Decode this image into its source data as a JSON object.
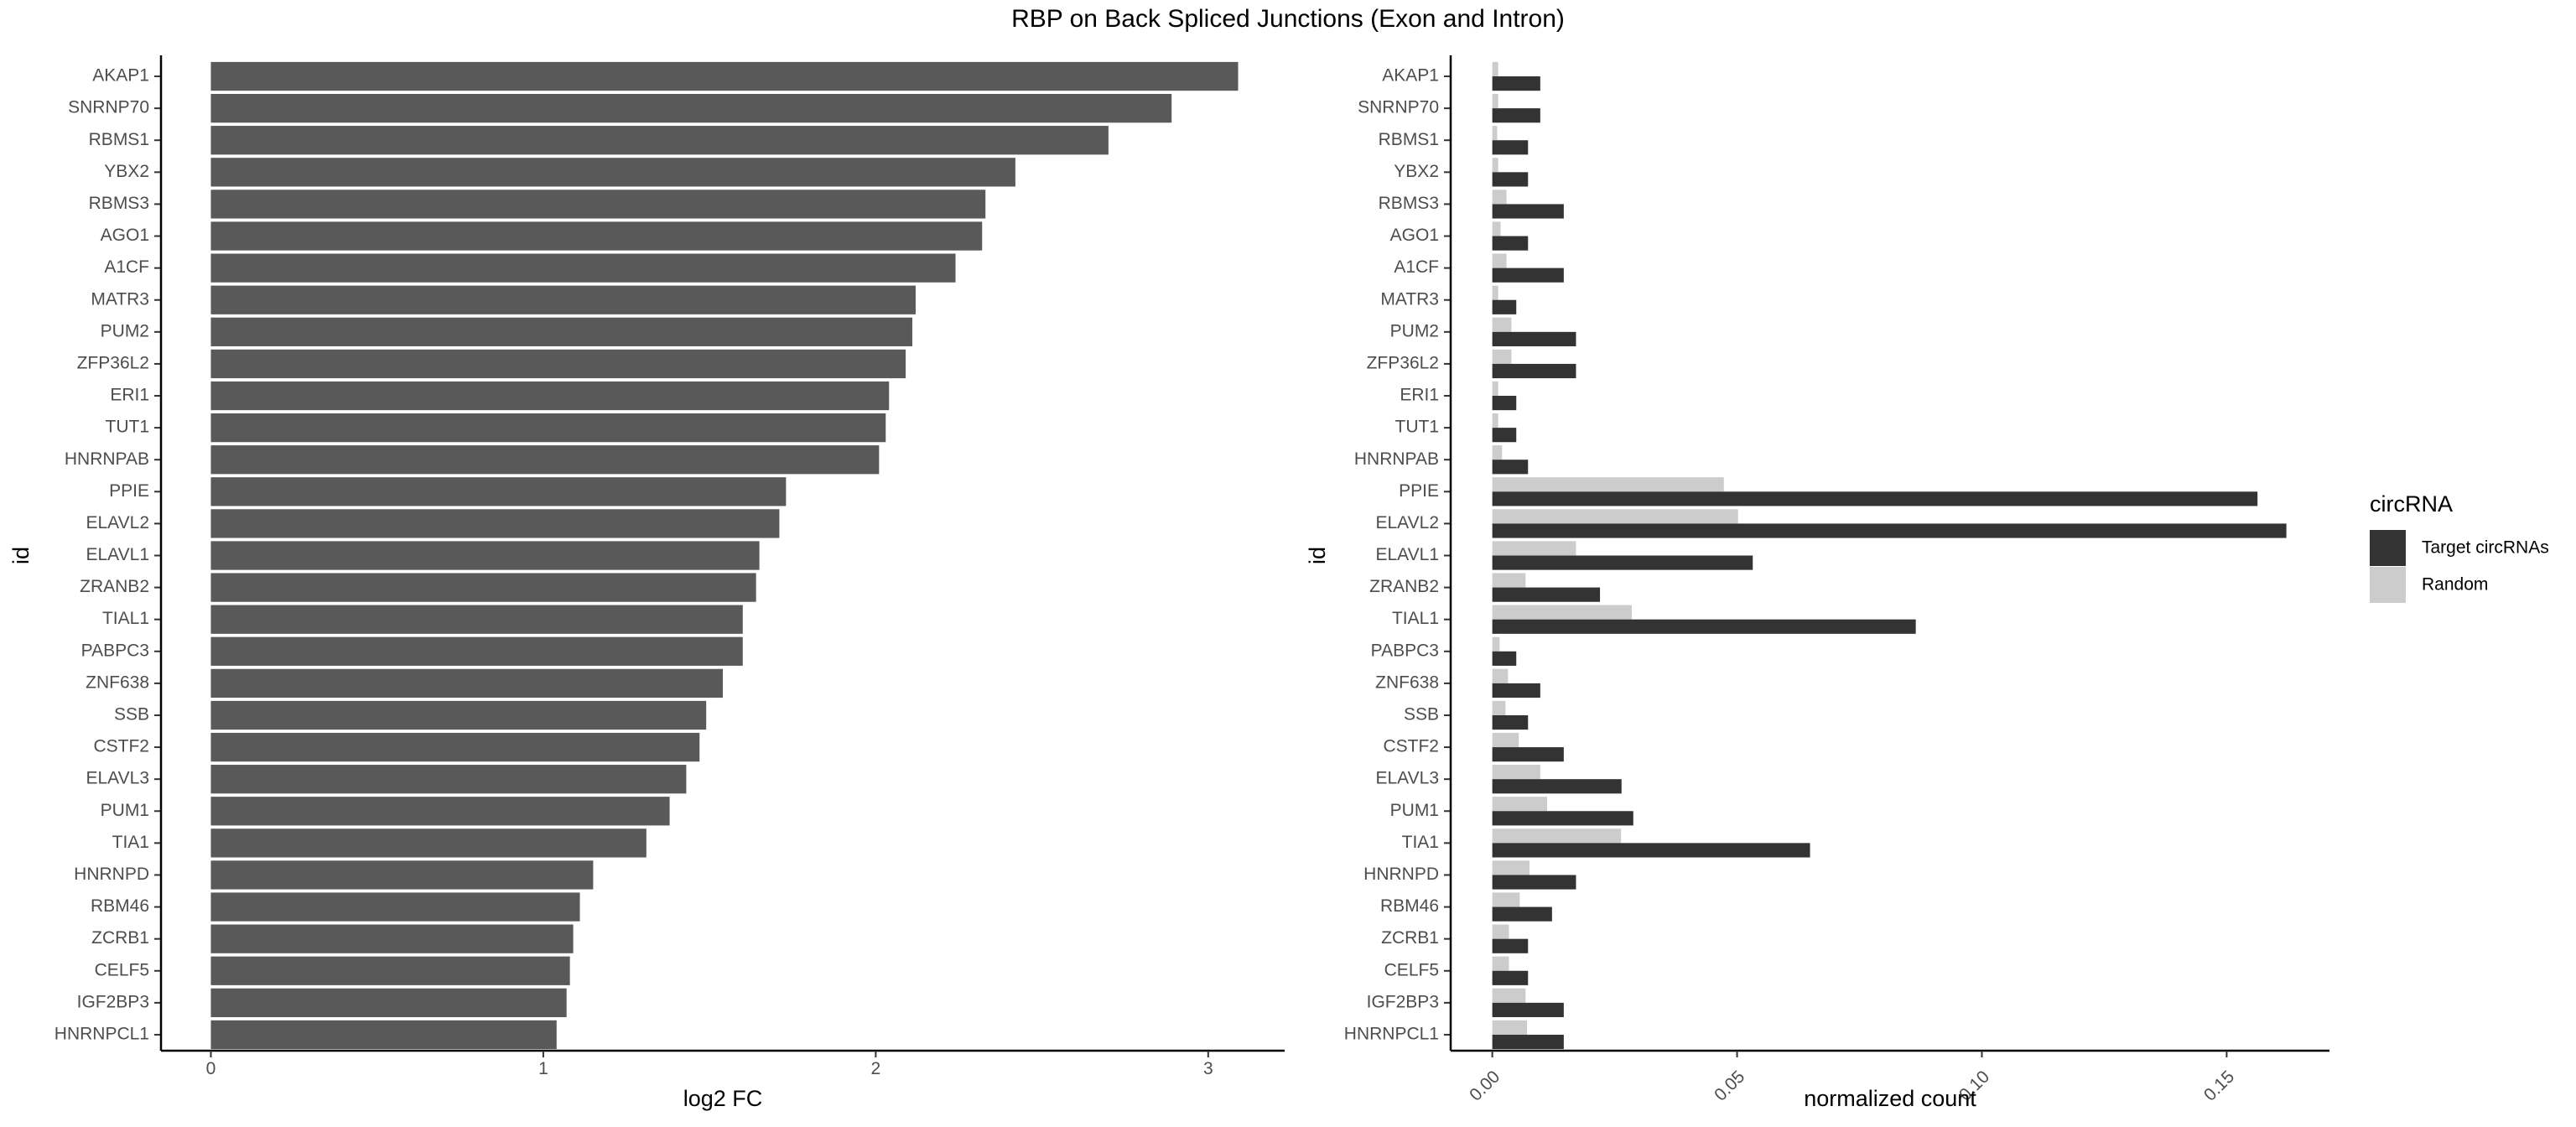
{
  "figure_title": "RBP on Back Spliced Junctions (Exon and Intron)",
  "chart_data": [
    {
      "type": "bar",
      "orientation": "horizontal",
      "title": "",
      "xlabel": "log2 FC",
      "ylabel": "id",
      "xlim": [
        -0.15,
        3.23
      ],
      "xticks": [
        0,
        1,
        2,
        3
      ],
      "xtick_labels": [
        "0",
        "1",
        "2",
        "3"
      ],
      "grid": false,
      "bar_color": "#595959",
      "categories": [
        "AKAP1",
        "SNRNP70",
        "RBMS1",
        "YBX2",
        "RBMS3",
        "AGO1",
        "A1CF",
        "MATR3",
        "PUM2",
        "ZFP36L2",
        "ERI1",
        "TUT1",
        "HNRNPAB",
        "PPIE",
        "ELAVL2",
        "ELAVL1",
        "ZRANB2",
        "TIAL1",
        "PABPC3",
        "ZNF638",
        "SSB",
        "CSTF2",
        "ELAVL3",
        "PUM1",
        "TIA1",
        "HNRNPD",
        "RBM46",
        "ZCRB1",
        "CELF5",
        "IGF2BP3",
        "HNRNPCL1"
      ],
      "values": [
        3.09,
        2.89,
        2.7,
        2.42,
        2.33,
        2.32,
        2.24,
        2.12,
        2.11,
        2.09,
        2.04,
        2.03,
        2.01,
        1.73,
        1.71,
        1.65,
        1.64,
        1.6,
        1.6,
        1.54,
        1.49,
        1.47,
        1.43,
        1.38,
        1.31,
        1.15,
        1.11,
        1.09,
        1.08,
        1.07,
        1.04
      ]
    },
    {
      "type": "bar",
      "orientation": "horizontal",
      "grouped": true,
      "title": "",
      "xlabel": "normalized count",
      "ylabel": "id",
      "xlim": [
        -0.0085,
        0.171
      ],
      "xticks": [
        0,
        0.05,
        0.1,
        0.15
      ],
      "xtick_labels": [
        "0.00",
        "0.05",
        "0.10",
        "0.15"
      ],
      "grid": false,
      "legend": {
        "title": "circRNA",
        "position": "right"
      },
      "categories": [
        "AKAP1",
        "SNRNP70",
        "RBMS1",
        "YBX2",
        "RBMS3",
        "AGO1",
        "A1CF",
        "MATR3",
        "PUM2",
        "ZFP36L2",
        "ERI1",
        "TUT1",
        "HNRNPAB",
        "PPIE",
        "ELAVL2",
        "ELAVL1",
        "ZRANB2",
        "TIAL1",
        "PABPC3",
        "ZNF638",
        "SSB",
        "CSTF2",
        "ELAVL3",
        "PUM1",
        "TIA1",
        "HNRNPD",
        "RBM46",
        "ZCRB1",
        "CELF5",
        "IGF2BP3",
        "HNRNPCL1"
      ],
      "series": [
        {
          "name": "Target circRNAs",
          "color": "#333333",
          "values": [
            0.0098,
            0.0098,
            0.0073,
            0.0073,
            0.0146,
            0.0073,
            0.0146,
            0.0049,
            0.0171,
            0.0171,
            0.0049,
            0.0049,
            0.0073,
            0.1563,
            0.1622,
            0.0532,
            0.022,
            0.0865,
            0.0049,
            0.0098,
            0.0073,
            0.0146,
            0.0264,
            0.0288,
            0.0649,
            0.0171,
            0.0122,
            0.0073,
            0.0073,
            0.0146,
            0.0146
          ]
        },
        {
          "name": "Random",
          "color": "#cccccc",
          "values": [
            0.0012,
            0.0012,
            0.001,
            0.0012,
            0.0029,
            0.0017,
            0.0029,
            0.0012,
            0.0039,
            0.0039,
            0.0012,
            0.0012,
            0.002,
            0.0473,
            0.0502,
            0.0171,
            0.0068,
            0.0285,
            0.0015,
            0.0032,
            0.0027,
            0.0054,
            0.0098,
            0.0112,
            0.0263,
            0.0076,
            0.0056,
            0.0034,
            0.0034,
            0.0068,
            0.0071
          ]
        }
      ]
    }
  ]
}
